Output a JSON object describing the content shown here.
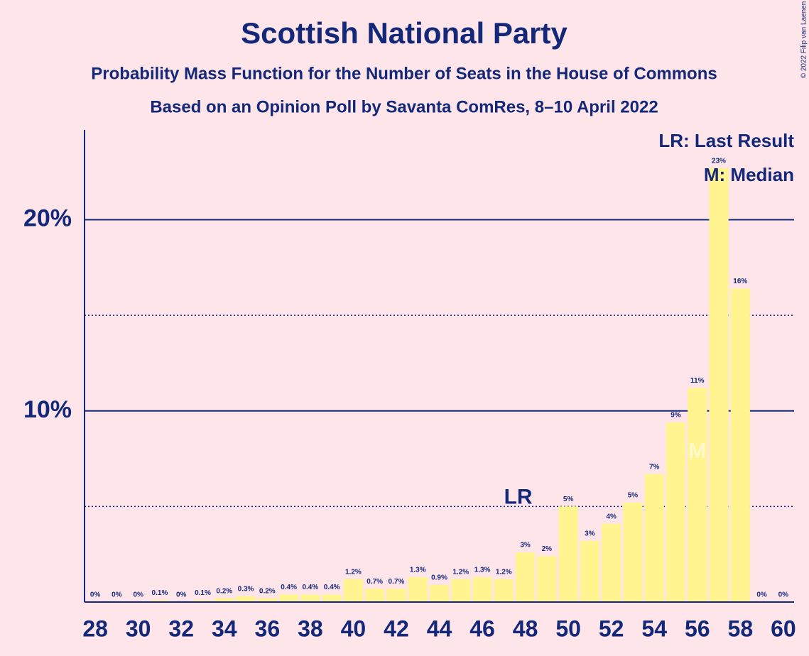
{
  "chart_data": {
    "type": "bar",
    "title": "Scottish National Party",
    "subtitle": "Probability Mass Function for the Number of Seats in the House of Commons",
    "subtitle2": "Based on an Opinion Poll by Savanta ComRes, 8–10 April 2022",
    "copyright": "© 2022 Filip van Laenen",
    "x": [
      28,
      29,
      30,
      31,
      32,
      33,
      34,
      35,
      36,
      37,
      38,
      39,
      40,
      41,
      42,
      43,
      44,
      45,
      46,
      47,
      48,
      49,
      50,
      51,
      52,
      53,
      54,
      55,
      56,
      57,
      58,
      59,
      60
    ],
    "values": [
      0,
      0,
      0,
      0.1,
      0,
      0.1,
      0.2,
      0.3,
      0.2,
      0.4,
      0.4,
      0.4,
      1.2,
      0.7,
      0.7,
      1.3,
      0.9,
      1.2,
      1.3,
      1.2,
      2.6,
      2.4,
      5.0,
      3.2,
      4.1,
      5.2,
      6.7,
      9.4,
      11.2,
      22.7,
      16.4,
      0,
      0
    ],
    "value_labels": [
      "0%",
      "0%",
      "0%",
      "0.1%",
      "0%",
      "0.1%",
      "0.2%",
      "0.3%",
      "0.2%",
      "0.4%",
      "0.4%",
      "0.4%",
      "1.2%",
      "0.7%",
      "0.7%",
      "1.3%",
      "0.9%",
      "1.2%",
      "1.3%",
      "1.2%",
      "3%",
      "2%",
      "5%",
      "3%",
      "4%",
      "5%",
      "7%",
      "9%",
      "11%",
      "23%",
      "16%",
      "0%",
      "0%"
    ],
    "color": "#fff48f",
    "xlim": [
      27.5,
      60.5
    ],
    "xticks": [
      28,
      30,
      32,
      34,
      36,
      38,
      40,
      42,
      44,
      46,
      48,
      50,
      52,
      54,
      56,
      58,
      60
    ],
    "ylim": [
      0,
      24.7
    ],
    "yticks": [
      {
        "value": 10,
        "label": "10%"
      },
      {
        "value": 20,
        "label": "20%"
      }
    ],
    "minor_gridlines": [
      5,
      15
    ],
    "annotations": [
      {
        "label": "LR",
        "x": 48
      },
      {
        "label": "M",
        "x": 56
      }
    ],
    "legend": [
      "LR: Last Result",
      "M: Median"
    ]
  }
}
